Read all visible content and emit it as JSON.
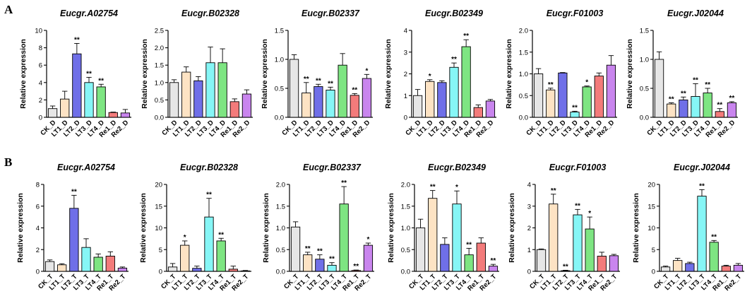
{
  "panel_labels": [
    "A",
    "B"
  ],
  "colors": {
    "CK": "#e6e6e6",
    "LT1": "#fde3c4",
    "LT2": "#6f6fe8",
    "LT3": "#86f6f6",
    "LT4": "#7ee582",
    "Re1": "#f37b7b",
    "Re2": "#c985ee"
  },
  "chart_data": [
    {
      "type": "bar",
      "panel": "A",
      "title": "Eucgr.A02754",
      "ylabel": "Relative expression",
      "categories": [
        "CK_D",
        "LT1_D",
        "LT2_D",
        "LT3_D",
        "LT4_D",
        "Re1_D",
        "Re2_D"
      ],
      "values": [
        1.0,
        2.1,
        7.3,
        4.0,
        3.5,
        0.55,
        0.5
      ],
      "errors": [
        0.3,
        0.9,
        1.2,
        0.6,
        0.3,
        0.05,
        0.4
      ],
      "significance": [
        "",
        "",
        "**",
        "**",
        "**",
        "",
        ""
      ],
      "ylim": [
        0,
        10
      ],
      "yticks": [
        "0",
        "2",
        "4",
        "6",
        "8",
        "10"
      ]
    },
    {
      "type": "bar",
      "panel": "A",
      "title": "Eucgr.B02328",
      "ylabel": "Relative expression",
      "categories": [
        "CK_D",
        "LT1_D",
        "LT2_D",
        "LT3_D",
        "LT4_D",
        "Re1_D",
        "Re2_D"
      ],
      "values": [
        1.0,
        1.3,
        1.05,
        1.57,
        1.57,
        0.45,
        0.67
      ],
      "errors": [
        0.08,
        0.15,
        0.12,
        0.45,
        0.4,
        0.08,
        0.12
      ],
      "significance": [
        "",
        "",
        "",
        "",
        "",
        "",
        ""
      ],
      "ylim": [
        0,
        2.5
      ],
      "yticks": [
        "0.0",
        "0.5",
        "1.0",
        "1.5",
        "2.0",
        "2.5"
      ]
    },
    {
      "type": "bar",
      "panel": "A",
      "title": "Eucgr.B02337",
      "ylabel": "Relative expression",
      "categories": [
        "CK_D",
        "LT1_D",
        "LT2_D",
        "LT3_D",
        "LT4_D",
        "Re1_D",
        "Re2_D"
      ],
      "values": [
        1.0,
        0.42,
        0.53,
        0.47,
        0.9,
        0.38,
        0.67
      ],
      "errors": [
        0.08,
        0.18,
        0.04,
        0.05,
        0.2,
        0.03,
        0.07
      ],
      "significance": [
        "",
        "**",
        "**",
        "**",
        "",
        "**",
        "*"
      ],
      "ylim": [
        0,
        1.5
      ],
      "yticks": [
        "0.0",
        "0.5",
        "1.0",
        "1.5"
      ]
    },
    {
      "type": "bar",
      "panel": "A",
      "title": "Eucgr.B02349",
      "ylabel": "Relative expression",
      "categories": [
        "CK_D",
        "LT1_D",
        "LT2_D",
        "LT3_D",
        "LT4_D",
        "Re1_D",
        "Re2_D"
      ],
      "values": [
        1.0,
        1.65,
        1.6,
        2.3,
        3.25,
        0.45,
        0.75
      ],
      "errors": [
        0.28,
        0.08,
        0.08,
        0.2,
        0.32,
        0.12,
        0.07
      ],
      "significance": [
        "",
        "*",
        "",
        "**",
        "**",
        "",
        ""
      ],
      "ylim": [
        0,
        4
      ],
      "yticks": [
        "0",
        "1",
        "2",
        "3",
        "4"
      ]
    },
    {
      "type": "bar",
      "panel": "A",
      "title": "Eucgr.F01003",
      "ylabel": "Relative expression",
      "categories": [
        "CK_D",
        "LT1_D",
        "LT2_D",
        "LT3_D",
        "LT4_D",
        "Re1_D",
        "Re2_D"
      ],
      "values": [
        1.0,
        0.63,
        1.02,
        0.12,
        0.7,
        0.95,
        1.2
      ],
      "errors": [
        0.12,
        0.04,
        0.01,
        0.02,
        0.02,
        0.07,
        0.22
      ],
      "significance": [
        "",
        "**",
        "",
        "**",
        "*",
        "",
        ""
      ],
      "ylim": [
        0,
        2.0
      ],
      "yticks": [
        "0.0",
        "0.5",
        "1.0",
        "1.5",
        "2.0"
      ]
    },
    {
      "type": "bar",
      "panel": "A",
      "title": "Eucgr.J02044",
      "ylabel": "Relative expression",
      "categories": [
        "CK_D",
        "LT1_D",
        "LT2_D",
        "LT3_D",
        "LT4_D",
        "Re1_D",
        "Re2_D"
      ],
      "values": [
        1.0,
        0.23,
        0.3,
        0.36,
        0.42,
        0.1,
        0.25
      ],
      "errors": [
        0.13,
        0.02,
        0.05,
        0.22,
        0.08,
        0.05,
        0.02
      ],
      "significance": [
        "",
        "**",
        "**",
        "**",
        "**",
        "**",
        "**"
      ],
      "ylim": [
        0,
        1.5
      ],
      "yticks": [
        "0.0",
        "0.5",
        "1.0",
        "1.5"
      ]
    },
    {
      "type": "bar",
      "panel": "B",
      "title": "Eucgr.A02754",
      "ylabel": "Relative expression",
      "categories": [
        "CK_T",
        "LT1_T",
        "LT2_T",
        "LT3_T",
        "LT4_T",
        "Re1_T",
        "Re2_T"
      ],
      "values": [
        0.9,
        0.6,
        5.8,
        2.2,
        1.3,
        1.4,
        0.3
      ],
      "errors": [
        0.15,
        0.1,
        1.2,
        0.8,
        0.3,
        0.4,
        0.1
      ],
      "significance": [
        "",
        "",
        "**",
        "",
        "",
        "",
        ""
      ],
      "ylim": [
        0,
        8
      ],
      "yticks": [
        "0",
        "2",
        "4",
        "6",
        "8"
      ]
    },
    {
      "type": "bar",
      "panel": "B",
      "title": "Eucgr.B02328",
      "ylabel": "Relative expression",
      "categories": [
        "CK_T",
        "LT1_T",
        "LT2_T",
        "LT3_T",
        "LT4_T",
        "Re1_T",
        "Re2_T"
      ],
      "values": [
        1.0,
        6.0,
        0.7,
        12.5,
        7.0,
        0.5,
        0.1
      ],
      "errors": [
        0.8,
        1.0,
        0.5,
        4.3,
        0.6,
        0.7,
        0.1
      ],
      "significance": [
        "",
        "*",
        "",
        "**",
        "**",
        "",
        ""
      ],
      "ylim": [
        0,
        20
      ],
      "yticks": [
        "0",
        "5",
        "10",
        "15",
        "20"
      ]
    },
    {
      "type": "bar",
      "panel": "B",
      "title": "Eucgr.B02337",
      "ylabel": "Relative expression",
      "categories": [
        "CK_T",
        "LT1_T",
        "LT2_T",
        "LT3_T",
        "LT4_T",
        "Re1_T",
        "Re2_T"
      ],
      "values": [
        1.02,
        0.38,
        0.28,
        0.14,
        1.55,
        0.02,
        0.6
      ],
      "errors": [
        0.12,
        0.06,
        0.1,
        0.06,
        0.4,
        0.01,
        0.05
      ],
      "significance": [
        "",
        "**",
        "**",
        "**",
        "**",
        "**",
        "*"
      ],
      "ylim": [
        0,
        2.0
      ],
      "yticks": [
        "0.0",
        "0.5",
        "1.0",
        "1.5",
        "2.0"
      ]
    },
    {
      "type": "bar",
      "panel": "B",
      "title": "Eucgr.B02349",
      "ylabel": "Relative expression",
      "categories": [
        "CK_T",
        "LT1_T",
        "LT2_T",
        "LT3_T",
        "LT4_T",
        "Re1_T",
        "Re2_T"
      ],
      "values": [
        1.0,
        1.68,
        0.62,
        1.55,
        0.38,
        0.65,
        0.12
      ],
      "errors": [
        0.2,
        0.18,
        0.15,
        0.3,
        0.15,
        0.12,
        0.04
      ],
      "significance": [
        "",
        "**",
        "",
        "*",
        "**",
        "",
        "**"
      ],
      "ylim": [
        0,
        2.0
      ],
      "yticks": [
        "0.0",
        "0.5",
        "1.0",
        "1.5",
        "2.0"
      ]
    },
    {
      "type": "bar",
      "panel": "B",
      "title": "Eucgr.F01003",
      "ylabel": "Relative expression",
      "categories": [
        "CK_T",
        "LT1_T",
        "LT2_T",
        "LT3_T",
        "LT4_T",
        "Re1_T",
        "Re2_T"
      ],
      "values": [
        1.0,
        3.1,
        0.03,
        2.6,
        1.95,
        0.7,
        0.72
      ],
      "errors": [
        0.03,
        0.45,
        0.02,
        0.25,
        0.55,
        0.18,
        0.06
      ],
      "significance": [
        "",
        "**",
        "**",
        "**",
        "*",
        "",
        ""
      ],
      "ylim": [
        0,
        4
      ],
      "yticks": [
        "0",
        "1",
        "2",
        "3",
        "4"
      ]
    },
    {
      "type": "bar",
      "panel": "B",
      "title": "Eucgr.J02044",
      "ylabel": "Relative expression",
      "categories": [
        "CK_T",
        "LT1_T",
        "LT2_T",
        "LT3_T",
        "LT4_T",
        "Re1_T",
        "Re2_T"
      ],
      "values": [
        1.0,
        2.5,
        1.8,
        17.3,
        6.7,
        1.2,
        1.4
      ],
      "errors": [
        0.2,
        0.5,
        0.3,
        1.5,
        0.4,
        0.2,
        0.4
      ],
      "significance": [
        "",
        "",
        "",
        "**",
        "**",
        "",
        ""
      ],
      "ylim": [
        0,
        20
      ],
      "yticks": [
        "0",
        "5",
        "10",
        "15",
        "20"
      ]
    }
  ]
}
